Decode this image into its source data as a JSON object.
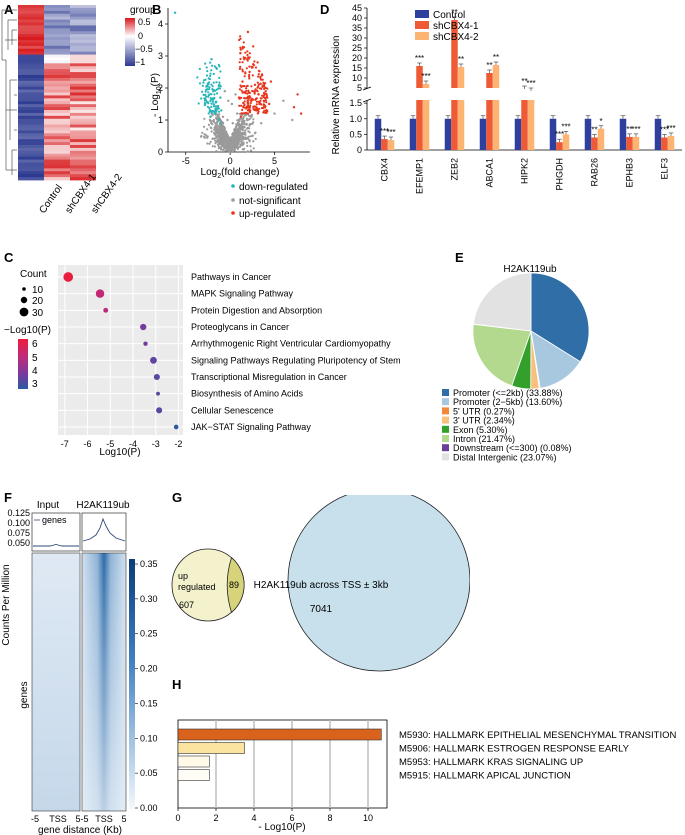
{
  "panel_labels": {
    "A": "A",
    "B": "B",
    "C": "C",
    "D": "D",
    "E": "E",
    "F": "F",
    "G": "G",
    "H": "H"
  },
  "heatmap": {
    "legend_title": "group",
    "legend_ticks": [
      "0.5",
      "0",
      "−0.5",
      "−1"
    ],
    "columns": [
      "Control",
      "shCBX4-1",
      "shCBX4-2"
    ],
    "colors": {
      "high": "#d7191c",
      "mid": "#ffffff",
      "low": "#2b3990"
    }
  },
  "volcano": {
    "ylabel_prefix": "- Log",
    "ylabel_sub": "10",
    "ylabel_suffix": "(P)",
    "xlabel_prefix": "Log",
    "xlabel_sub": "2",
    "xlabel_suffix": "(fold change)",
    "legend": [
      {
        "label": "down-regulated",
        "color": "#26b5b8"
      },
      {
        "label": "not-significant",
        "color": "#9a9a9a"
      },
      {
        "label": "up-regulated",
        "color": "#e8341c"
      }
    ]
  },
  "chart_data": [
    {
      "type": "scatter",
      "title": "",
      "xlabel": "Log2(fold change)",
      "ylabel": "- Log10(P)",
      "xticks": [
        "-5",
        "0",
        "5"
      ],
      "yticks": [
        "0",
        "1",
        "2",
        "3",
        "4"
      ],
      "xlim": [
        -7,
        9
      ],
      "ylim": [
        0,
        4.5
      ],
      "series": [
        {
          "name": "down-regulated",
          "points": [
            [
              -6.2,
              4.35
            ],
            [
              -2.1,
              2.9
            ],
            [
              -1.5,
              2.6
            ],
            [
              -2.4,
              2.3
            ],
            [
              -1.2,
              2.1
            ],
            [
              -1.9,
              1.9
            ],
            [
              -1.1,
              1.7
            ],
            [
              -2.8,
              1.5
            ],
            [
              -1.4,
              1.4
            ],
            [
              -1.0,
              1.3
            ],
            [
              -1.7,
              1.2
            ],
            [
              -2.2,
              1.1
            ],
            [
              -1.3,
              1.0
            ],
            [
              -1.1,
              0.9
            ],
            [
              -1.6,
              1.55
            ]
          ]
        },
        {
          "name": "not-significant",
          "points": [
            [
              0,
              0.2
            ],
            [
              0.5,
              0.4
            ],
            [
              -0.5,
              0.3
            ],
            [
              1,
              0.6
            ],
            [
              -1,
              0.5
            ],
            [
              0.3,
              0.9
            ],
            [
              -0.3,
              1.0
            ],
            [
              0.8,
              1.2
            ],
            [
              -0.8,
              1.1
            ],
            [
              0.2,
              1.5
            ],
            [
              -0.2,
              1.6
            ],
            [
              0.6,
              1.8
            ],
            [
              -0.6,
              1.9
            ],
            [
              2.5,
              0.5
            ],
            [
              3.5,
              0.9
            ],
            [
              5,
              1.2
            ],
            [
              6,
              1.6
            ],
            [
              7,
              1.0
            ]
          ]
        },
        {
          "name": "up-regulated",
          "points": [
            [
              2.0,
              3.75
            ],
            [
              1.2,
              3.2
            ],
            [
              2.6,
              3.3
            ],
            [
              1.6,
              2.9
            ],
            [
              3.1,
              2.8
            ],
            [
              1.1,
              2.6
            ],
            [
              2.2,
              2.5
            ],
            [
              3.6,
              2.4
            ],
            [
              1.4,
              2.2
            ],
            [
              2.8,
              2.1
            ],
            [
              4.0,
              2.0
            ],
            [
              1.8,
              1.9
            ],
            [
              3.2,
              1.8
            ],
            [
              1.0,
              1.7
            ],
            [
              2.4,
              1.6
            ],
            [
              4.4,
              1.5
            ],
            [
              1.5,
              1.4
            ],
            [
              3.0,
              1.3
            ],
            [
              2.0,
              1.2
            ],
            [
              1.2,
              1.1
            ],
            [
              7.6,
              1.8
            ],
            [
              7.2,
              1.4
            ],
            [
              8.0,
              1.2
            ],
            [
              3.8,
              1.6
            ],
            [
              4.6,
              2.2
            ]
          ]
        }
      ]
    },
    {
      "type": "bar",
      "title": "",
      "ylabel": "Relative mRNA expression",
      "categories": [
        "CBX4",
        "EFEMP1",
        "ZEB2",
        "ABCA1",
        "HIPK2",
        "PHGDH",
        "RAB26",
        "EPHB3",
        "ELF3"
      ],
      "series": [
        {
          "name": "Control",
          "color": "#2e3f9e",
          "values": [
            1,
            1,
            1,
            1,
            1,
            1,
            1,
            1,
            1
          ]
        },
        {
          "name": "shCBX4-1",
          "color": "#ee5a36",
          "values": [
            0.35,
            16,
            39,
            12.5,
            4.5,
            0.25,
            0.4,
            0.42,
            0.4
          ]
        },
        {
          "name": "shCBX4-2",
          "color": "#fdb371",
          "values": [
            0.32,
            7,
            15.5,
            16.5,
            3.5,
            0.5,
            0.68,
            0.42,
            0.45
          ]
        }
      ],
      "significance": [
        [
          "",
          "***",
          "***"
        ],
        [
          "",
          "***",
          "***"
        ],
        [
          "",
          "**",
          "**"
        ],
        [
          "",
          "**",
          "**"
        ],
        [
          "",
          "**",
          "***"
        ],
        [
          "",
          "***",
          "***"
        ],
        [
          "",
          "**",
          "*"
        ],
        [
          "",
          "**",
          "***"
        ],
        [
          "",
          "***",
          "***"
        ]
      ],
      "ylim_lower": [
        0,
        1.6
      ],
      "ylim_upper": [
        5,
        45
      ],
      "yticks_lower": [
        "0",
        "0.5",
        "1.0",
        "1.5"
      ],
      "yticks_upper": [
        "5",
        "10",
        "15",
        "20",
        "25",
        "30",
        "35",
        "40",
        "45"
      ]
    },
    {
      "type": "scatter",
      "title": "",
      "xlabel": "Log10(P)",
      "xticks": [
        "-7",
        "-6",
        "-5",
        "-4",
        "-3",
        "-2"
      ],
      "xlim": [
        -7.3,
        -1.8
      ],
      "categories": [
        "Pathways in Cancer",
        "MAPK Signaling Pathway",
        "Protein Digestion and Absorption",
        "Proteoglycans in Cancer",
        "Arrhythmogenic Right Ventricular Cardiomyopathy",
        "Signaling Pathways Regulating Pluripotency of Stem Cells",
        "Transcriptional Misregulation in Cancer",
        "Biosynthesis of Amino Acids",
        "Cellular Senescence",
        "JAK−STAT Signaling Pathway"
      ],
      "x": [
        -6.85,
        -5.45,
        -5.2,
        -3.55,
        -3.45,
        -3.1,
        -2.95,
        -2.9,
        -2.85,
        -2.1
      ],
      "count": [
        32,
        27,
        12,
        18,
        10,
        20,
        17,
        8,
        17,
        11
      ],
      "neglog10p": [
        6.9,
        5.5,
        5.2,
        3.6,
        3.5,
        3.1,
        3.0,
        2.9,
        2.9,
        2.1
      ],
      "count_legend_title": "Count",
      "count_legend": [
        "10",
        "20",
        "30"
      ],
      "color_legend_title": "−Log10(P)",
      "color_legend": [
        "6",
        "5",
        "4",
        "3"
      ]
    },
    {
      "type": "pie",
      "title": "H2AK119ub",
      "labels": [
        "Promoter (<=2kb) (33.88%)",
        "Promoter (2−5kb) (13.60%)",
        "5' UTR (0.27%)",
        "3' UTR (2.34%)",
        "Exon (5.30%)",
        "Intron (21.47%)",
        "Downstream (<=300) (0.08%)",
        "Distal Intergenic (23.07%)"
      ],
      "values": [
        33.88,
        13.6,
        0.27,
        2.34,
        5.3,
        21.47,
        0.08,
        23.07
      ],
      "colors": [
        "#2f6ea6",
        "#a8c8e0",
        "#f2893a",
        "#f7c07c",
        "#33a02c",
        "#b2d98e",
        "#6a3d9a",
        "#e2e2e2"
      ]
    },
    {
      "type": "heatmap",
      "title": "",
      "columns": [
        "Input",
        "H2AK119ub"
      ],
      "profile_label": "genes",
      "profile_ylabel": "Counts Per Million",
      "profile_yticks": [
        "0.125",
        "0.100",
        "0.075",
        "0.050"
      ],
      "row_label": "genes",
      "xticks": [
        "-5",
        "TSS",
        "5-5",
        "TSS",
        "5"
      ],
      "xlabel": "gene distance (Kb)",
      "colorbar_ticks": [
        "0.35",
        "0.30",
        "0.25",
        "0.20",
        "0.15",
        "0.10",
        "0.05",
        "0.00"
      ]
    },
    {
      "type": "bar",
      "title": "",
      "xlabel": "- Log10(P)",
      "xticks": [
        "0",
        "2",
        "4",
        "6",
        "8",
        "10"
      ],
      "xlim": [
        0,
        11
      ],
      "categories": [
        "M5930: HALLMARK EPITHELIAL MESENCHYMAL TRANSITION",
        "M5906: HALLMARK ESTROGEN RESPONSE EARLY",
        "M5953: HALLMARK KRAS SIGNALING UP",
        "M5915: HALLMARK APICAL JUNCTION"
      ],
      "values": [
        10.7,
        3.5,
        1.65,
        1.65
      ],
      "colors": [
        "#d9621c",
        "#fbe4a0",
        "#fff9e8",
        "#fffdf5"
      ]
    }
  ],
  "venn": {
    "left_label_line1": "up",
    "left_label_line2": "regulated",
    "left_count": "607",
    "overlap_count": "89",
    "right_label": "H2AK119ub across TSS ± 3kb",
    "right_count": "7041"
  }
}
